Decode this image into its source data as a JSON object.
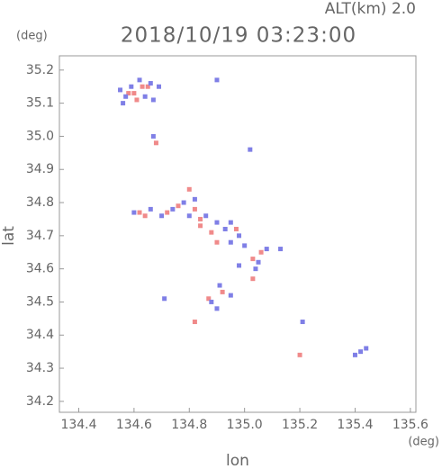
{
  "chart_data": {
    "type": "scatter",
    "title": "2018/10/19 03:23:00",
    "annotation": "ALT(km) 2.0",
    "ylabel": "lat",
    "ylabel_unit": "(deg)",
    "xlabel": "lon",
    "xlabel_unit": "(deg)",
    "xlim": [
      134.33,
      135.62
    ],
    "ylim": [
      34.167,
      35.243
    ],
    "xticks": [
      134.4,
      134.6,
      134.8,
      {
        "value": 135,
        "label": "135.0"
      },
      135.2,
      135.4,
      135.6
    ],
    "yticks": [
      34.2,
      34.3,
      34.4,
      34.5,
      34.6,
      34.7,
      34.8,
      34.9,
      {
        "value": 35,
        "label": "35.0"
      },
      35.1,
      35.2
    ],
    "series": [
      {
        "color": "#f08a8a",
        "x": [
          134.6,
          134.63,
          134.65,
          134.61,
          134.68,
          134.62,
          134.64,
          134.72,
          134.76,
          134.8,
          134.82,
          134.84,
          134.88,
          134.9,
          134.97,
          135.03,
          135.06,
          135.03,
          134.82,
          134.92,
          134.87,
          135.2,
          134.58,
          134.84
        ],
        "y": [
          35.13,
          35.15,
          35.15,
          35.11,
          34.98,
          34.77,
          34.76,
          34.77,
          34.79,
          34.84,
          34.78,
          34.75,
          34.71,
          34.68,
          34.72,
          34.63,
          34.65,
          34.57,
          34.44,
          34.53,
          34.51,
          34.34,
          35.13,
          34.73
        ]
      },
      {
        "color": "#7f7fe6",
        "x": [
          134.55,
          134.57,
          134.59,
          134.62,
          134.64,
          134.66,
          134.67,
          134.69,
          134.56,
          134.67,
          134.9,
          135.02,
          134.6,
          134.66,
          134.7,
          134.74,
          134.78,
          134.8,
          134.82,
          134.86,
          134.9,
          134.93,
          134.95,
          134.98,
          135.0,
          134.95,
          135.05,
          135.08,
          135.04,
          134.98,
          135.13,
          134.88,
          134.9,
          134.95,
          134.91,
          134.71,
          135.42,
          135.4,
          135.44,
          135.21
        ],
        "y": [
          35.14,
          35.12,
          35.15,
          35.17,
          35.12,
          35.16,
          35.11,
          35.15,
          35.1,
          35.0,
          35.17,
          34.96,
          34.77,
          34.78,
          34.76,
          34.78,
          34.8,
          34.76,
          34.81,
          34.76,
          34.74,
          34.72,
          34.74,
          34.7,
          34.67,
          34.68,
          34.62,
          34.66,
          34.6,
          34.61,
          34.66,
          34.5,
          34.48,
          34.52,
          34.55,
          34.51,
          34.35,
          34.34,
          34.36,
          34.44
        ]
      }
    ]
  }
}
